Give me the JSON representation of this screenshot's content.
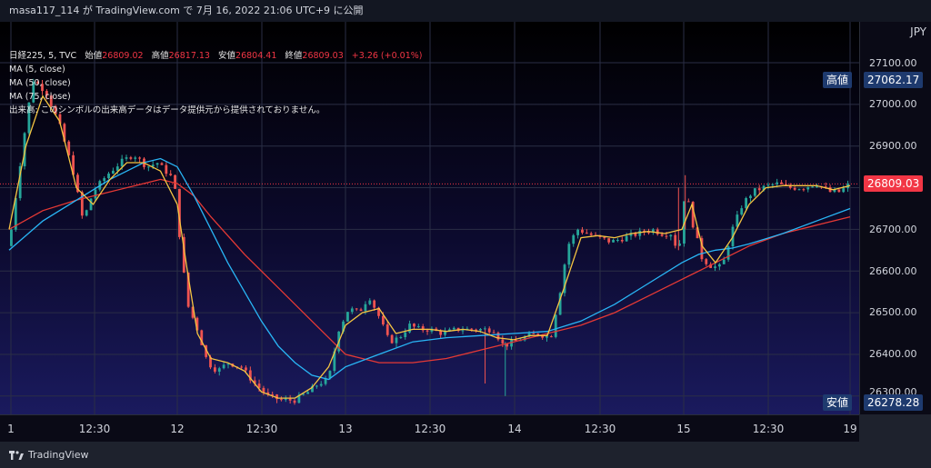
{
  "header": {
    "title": "masa117_114 が TradingView.com で 7月 16, 2022 21:06 UTC+9 に公開"
  },
  "legend": {
    "symbol": "日経225, 5, TVC",
    "open_label": "始値",
    "open": "26809.02",
    "high_label": "高値",
    "high": "26817.13",
    "low_label": "安値",
    "low": "26804.41",
    "close_label": "終値",
    "close": "26809.03",
    "change": "+3.26 (+0.01%)",
    "ma": [
      "MA (5, close)",
      "MA (50, close)",
      "MA (75, close)"
    ],
    "volume_note": "出来高: このシンボルの出来高データはデータ提供元から提供されておりません。"
  },
  "axis": {
    "currency": "JPY",
    "yticks": [
      "27100.00",
      "27000.00",
      "26900.00",
      "26800.00",
      "26700.00",
      "26600.00",
      "26500.00",
      "26400.00",
      "26300.00"
    ],
    "xticks": [
      "1",
      "12:30",
      "12",
      "12:30",
      "13",
      "12:30",
      "14",
      "12:30",
      "15",
      "12:30",
      "19"
    ]
  },
  "badges": {
    "high_label": "高値",
    "high_value": "27062.17",
    "last_value": "26809.03",
    "low_label": "安値",
    "low_value": "26278.28"
  },
  "footer": {
    "brand": "TradingView"
  },
  "colors": {
    "up": "#26a69a",
    "down": "#ef5350",
    "ma5": "#f5c542",
    "ma50": "#29b6f6",
    "ma75": "#e53935"
  },
  "chart_data": {
    "type": "line",
    "series_names": [
      "MA (5, close)",
      "MA (50, close)",
      "MA (75, close)"
    ],
    "ylim": [
      26250,
      27150
    ],
    "price_path": [
      [
        0,
        26660
      ],
      [
        0.8,
        26900
      ],
      [
        1.4,
        27060
      ],
      [
        2.2,
        27030
      ],
      [
        3,
        26950
      ],
      [
        3.8,
        26840
      ],
      [
        4.4,
        26720
      ],
      [
        5,
        26790
      ],
      [
        5.8,
        26830
      ],
      [
        6.6,
        26860
      ],
      [
        7.4,
        26880
      ],
      [
        8.2,
        26850
      ],
      [
        8.8,
        26860
      ],
      [
        9.3,
        26840
      ],
      [
        9.8,
        26820
      ],
      [
        10.2,
        26660
      ],
      [
        10.6,
        26520
      ],
      [
        11.2,
        26460
      ],
      [
        11.8,
        26380
      ],
      [
        12.4,
        26360
      ],
      [
        13,
        26380
      ],
      [
        13.8,
        26370
      ],
      [
        14.6,
        26330
      ],
      [
        15.4,
        26300
      ],
      [
        16.2,
        26290
      ],
      [
        17,
        26290
      ],
      [
        17.8,
        26310
      ],
      [
        18.4,
        26330
      ],
      [
        19,
        26340
      ],
      [
        19.6,
        26460
      ],
      [
        20.2,
        26510
      ],
      [
        20.8,
        26500
      ],
      [
        21.4,
        26540
      ],
      [
        22,
        26490
      ],
      [
        22.6,
        26430
      ],
      [
        23.2,
        26440
      ],
      [
        23.8,
        26470
      ],
      [
        24.4,
        26460
      ],
      [
        25,
        26460
      ],
      [
        25.8,
        26450
      ],
      [
        26.6,
        26460
      ],
      [
        27.4,
        26460
      ],
      [
        28.2,
        26460
      ],
      [
        28.8,
        26460
      ],
      [
        29.4,
        26420
      ],
      [
        30,
        26430
      ],
      [
        30.6,
        26440
      ],
      [
        31.4,
        26450
      ],
      [
        32.2,
        26440
      ],
      [
        32.8,
        26560
      ],
      [
        33.2,
        26660
      ],
      [
        33.8,
        26700
      ],
      [
        34.4,
        26690
      ],
      [
        35,
        26680
      ],
      [
        35.8,
        26670
      ],
      [
        36.6,
        26680
      ],
      [
        37.4,
        26690
      ],
      [
        38.2,
        26700
      ],
      [
        38.8,
        26690
      ],
      [
        39.4,
        26690
      ],
      [
        39.8,
        26640
      ],
      [
        40.2,
        26800
      ],
      [
        40.6,
        26720
      ],
      [
        41.2,
        26630
      ],
      [
        41.8,
        26610
      ],
      [
        42.4,
        26610
      ],
      [
        43,
        26700
      ],
      [
        43.6,
        26760
      ],
      [
        44.2,
        26790
      ],
      [
        44.8,
        26800
      ],
      [
        45.6,
        26810
      ],
      [
        46.4,
        26800
      ],
      [
        47.2,
        26800
      ],
      [
        48,
        26810
      ],
      [
        48.8,
        26790
      ],
      [
        49.4,
        26790
      ],
      [
        50,
        26810
      ]
    ],
    "ma5_path": [
      [
        0,
        26700
      ],
      [
        1,
        26900
      ],
      [
        2,
        27020
      ],
      [
        3,
        26960
      ],
      [
        4,
        26800
      ],
      [
        5,
        26760
      ],
      [
        6,
        26820
      ],
      [
        7,
        26860
      ],
      [
        8,
        26860
      ],
      [
        9,
        26840
      ],
      [
        10,
        26760
      ],
      [
        10.6,
        26600
      ],
      [
        11.2,
        26450
      ],
      [
        12,
        26390
      ],
      [
        13,
        26380
      ],
      [
        14,
        26360
      ],
      [
        15,
        26310
      ],
      [
        16,
        26295
      ],
      [
        17,
        26295
      ],
      [
        18,
        26320
      ],
      [
        19,
        26370
      ],
      [
        20,
        26470
      ],
      [
        21,
        26500
      ],
      [
        22,
        26510
      ],
      [
        23,
        26450
      ],
      [
        24,
        26460
      ],
      [
        25,
        26460
      ],
      [
        26,
        26455
      ],
      [
        27,
        26460
      ],
      [
        28,
        26455
      ],
      [
        29,
        26440
      ],
      [
        30,
        26435
      ],
      [
        31,
        26445
      ],
      [
        32,
        26445
      ],
      [
        33,
        26560
      ],
      [
        34,
        26680
      ],
      [
        35,
        26685
      ],
      [
        36,
        26680
      ],
      [
        37,
        26690
      ],
      [
        38,
        26695
      ],
      [
        39,
        26690
      ],
      [
        40,
        26700
      ],
      [
        40.6,
        26760
      ],
      [
        41.2,
        26660
      ],
      [
        42,
        26620
      ],
      [
        43,
        26680
      ],
      [
        44,
        26760
      ],
      [
        45,
        26800
      ],
      [
        46,
        26805
      ],
      [
        47,
        26805
      ],
      [
        48,
        26805
      ],
      [
        49,
        26795
      ],
      [
        50,
        26805
      ]
    ],
    "ma50_path": [
      [
        0,
        26650
      ],
      [
        2,
        26720
      ],
      [
        4,
        26770
      ],
      [
        6,
        26820
      ],
      [
        8,
        26860
      ],
      [
        9,
        26870
      ],
      [
        10,
        26850
      ],
      [
        11,
        26780
      ],
      [
        12,
        26700
      ],
      [
        13,
        26620
      ],
      [
        14,
        26550
      ],
      [
        15,
        26480
      ],
      [
        16,
        26420
      ],
      [
        17,
        26380
      ],
      [
        18,
        26350
      ],
      [
        19,
        26340
      ],
      [
        20,
        26370
      ],
      [
        22,
        26400
      ],
      [
        24,
        26430
      ],
      [
        26,
        26440
      ],
      [
        28,
        26445
      ],
      [
        30,
        26450
      ],
      [
        32,
        26455
      ],
      [
        34,
        26480
      ],
      [
        36,
        26520
      ],
      [
        38,
        26570
      ],
      [
        40,
        26620
      ],
      [
        41,
        26640
      ],
      [
        42,
        26650
      ],
      [
        43,
        26655
      ],
      [
        44,
        26665
      ],
      [
        46,
        26690
      ],
      [
        48,
        26720
      ],
      [
        50,
        26750
      ]
    ],
    "ma75_path": [
      [
        0,
        26700
      ],
      [
        2,
        26745
      ],
      [
        4,
        26770
      ],
      [
        6,
        26790
      ],
      [
        8,
        26810
      ],
      [
        9,
        26820
      ],
      [
        10,
        26810
      ],
      [
        11,
        26780
      ],
      [
        12,
        26730
      ],
      [
        14,
        26640
      ],
      [
        16,
        26560
      ],
      [
        18,
        26480
      ],
      [
        19,
        26440
      ],
      [
        20,
        26400
      ],
      [
        22,
        26380
      ],
      [
        24,
        26380
      ],
      [
        26,
        26390
      ],
      [
        28,
        26410
      ],
      [
        30,
        26430
      ],
      [
        32,
        26450
      ],
      [
        34,
        26470
      ],
      [
        36,
        26500
      ],
      [
        38,
        26540
      ],
      [
        40,
        26580
      ],
      [
        41,
        26600
      ],
      [
        42,
        26620
      ],
      [
        43,
        26640
      ],
      [
        44,
        26660
      ],
      [
        46,
        26690
      ],
      [
        48,
        26710
      ],
      [
        50,
        26730
      ]
    ]
  }
}
